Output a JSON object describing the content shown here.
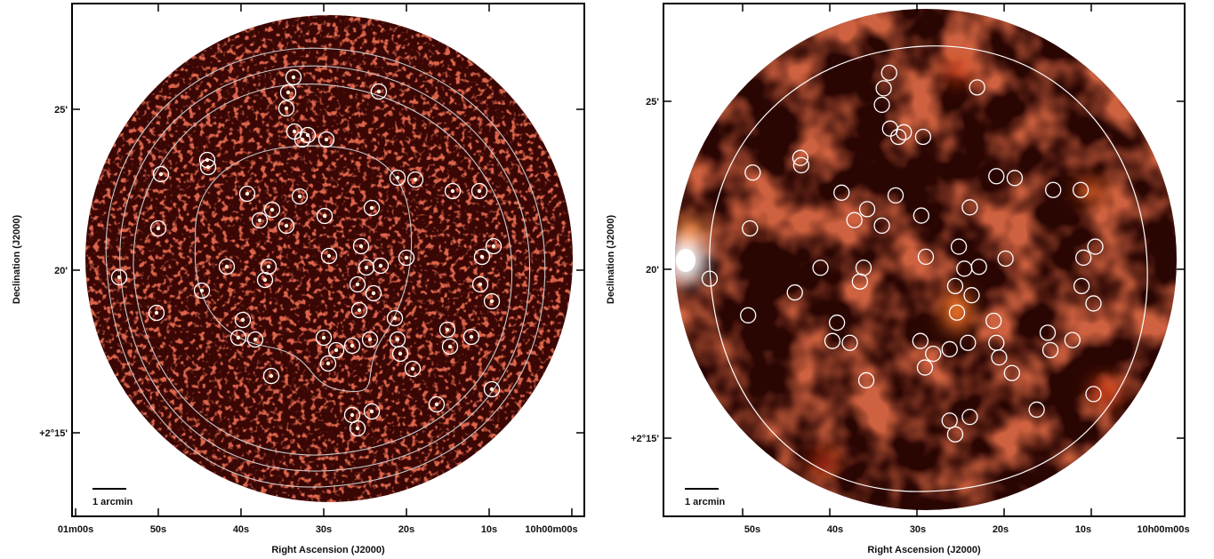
{
  "figure": {
    "panels": [
      {
        "id": "left",
        "image_style": "noisy-speckle-map",
        "colors": {
          "background": "#3a0705",
          "speckle": "#b51f12",
          "bright": "#ffe6c8",
          "contour": "#c8c8c8",
          "source_circle": "#ffffff"
        },
        "x_axis": {
          "title": "Right Ascension (J2000)",
          "tick_labels": [
            "01m00s",
            "50s",
            "40s",
            "30s",
            "20s",
            "10s",
            "10h00m00s"
          ]
        },
        "y_axis": {
          "title": "Declination (J2000)",
          "tick_labels": [
            "25'",
            "20'",
            "+2°15'"
          ]
        },
        "scale_bar": {
          "label": "1 arcmin"
        },
        "contour_count": 4,
        "source_count": 62
      },
      {
        "id": "right",
        "image_style": "smoothed-map",
        "colors": {
          "background": "#2a0603",
          "mid": "#8c1a0c",
          "bright": "#ff7a2a",
          "hot": "#ffffff",
          "contour": "#ffffff",
          "source_circle": "#ffffff"
        },
        "x_axis": {
          "title": "Right Ascension (J2000)",
          "tick_labels": [
            "50s",
            "40s",
            "30s",
            "20s",
            "10s",
            "10h00m00s"
          ]
        },
        "y_axis": {
          "title": "Declination (J2000)",
          "tick_labels": [
            "25'",
            "20'",
            "+2°15'"
          ]
        },
        "scale_bar": {
          "label": "1 arcmin"
        },
        "contour_count": 1,
        "source_count": 62
      }
    ]
  }
}
